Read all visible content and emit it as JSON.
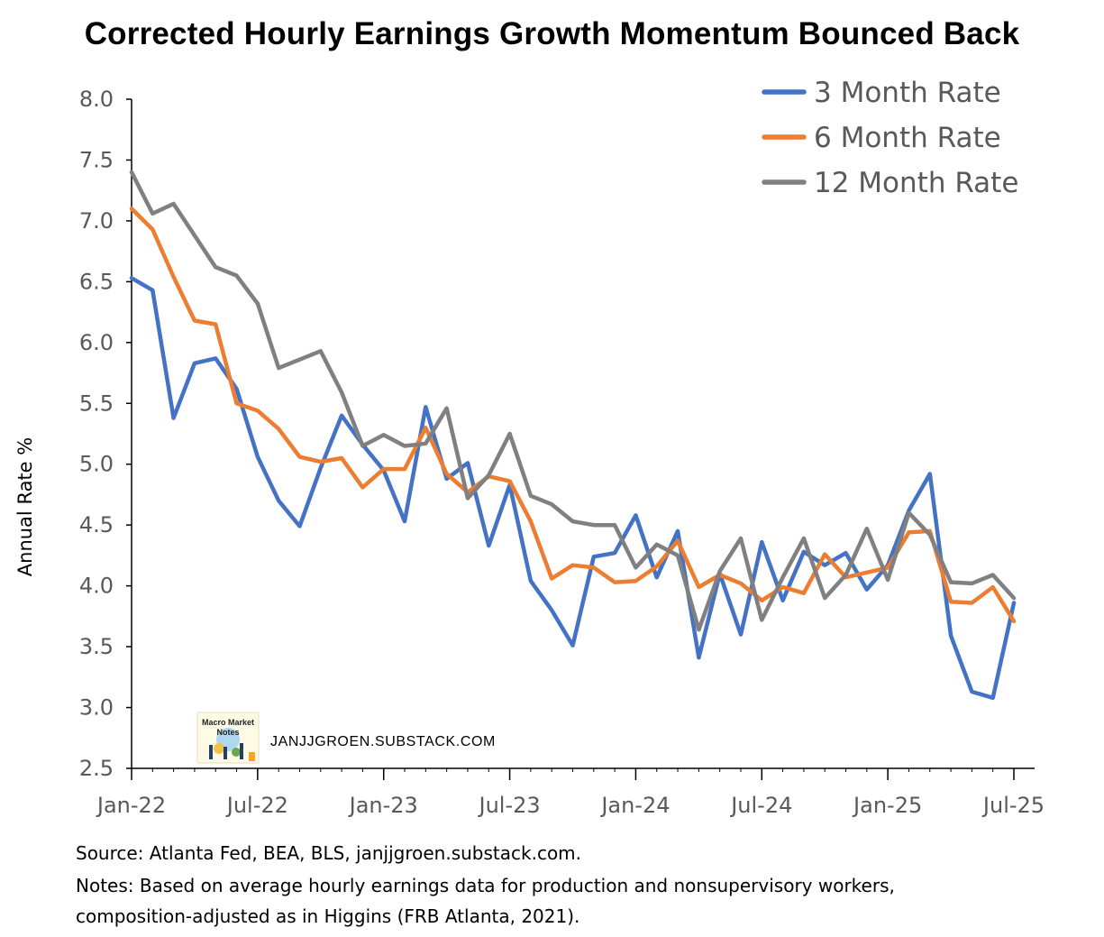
{
  "chart_data": {
    "type": "line",
    "title": "Corrected Hourly Earnings Growth Momentum Bounced Back",
    "xlabel": "",
    "ylabel": "Annual Rate %",
    "ylim": [
      2.5,
      8.0
    ],
    "y_ticks": [
      "2.5",
      "3.0",
      "3.5",
      "4.0",
      "4.5",
      "5.0",
      "5.5",
      "6.0",
      "6.5",
      "7.0",
      "7.5",
      "8.0"
    ],
    "x_tick_labels": [
      "Jan-22",
      "Jul-22",
      "Jan-23",
      "Jul-23",
      "Jan-24",
      "Jul-24",
      "Jan-25",
      "Jul-25"
    ],
    "x": [
      "2022-01",
      "2022-02",
      "2022-03",
      "2022-04",
      "2022-05",
      "2022-06",
      "2022-07",
      "2022-08",
      "2022-09",
      "2022-10",
      "2022-11",
      "2022-12",
      "2023-01",
      "2023-02",
      "2023-03",
      "2023-04",
      "2023-05",
      "2023-06",
      "2023-07",
      "2023-08",
      "2023-09",
      "2023-10",
      "2023-11",
      "2023-12",
      "2024-01",
      "2024-02",
      "2024-03",
      "2024-04",
      "2024-05",
      "2024-06",
      "2024-07",
      "2024-08",
      "2024-09",
      "2024-10",
      "2024-11",
      "2024-12",
      "2025-01",
      "2025-02",
      "2025-03",
      "2025-04",
      "2025-05",
      "2025-06",
      "2025-07"
    ],
    "legend_position": "top-right",
    "series": [
      {
        "name": "3 Month Rate",
        "color": "#4472C4",
        "values": [
          6.53,
          6.43,
          5.38,
          5.83,
          5.87,
          5.62,
          5.06,
          4.7,
          4.49,
          4.97,
          5.4,
          5.16,
          4.95,
          4.53,
          5.47,
          4.88,
          5.01,
          4.33,
          4.83,
          4.04,
          3.8,
          3.51,
          4.24,
          4.27,
          4.58,
          4.07,
          4.45,
          3.41,
          4.1,
          3.6,
          4.36,
          3.88,
          4.28,
          4.17,
          4.27,
          3.97,
          4.17,
          4.62,
          4.92,
          3.59,
          3.13,
          3.08,
          3.86
        ]
      },
      {
        "name": "6 Month Rate",
        "color": "#ED7D31",
        "values": [
          7.1,
          6.93,
          6.54,
          6.18,
          6.15,
          5.5,
          5.44,
          5.29,
          5.06,
          5.02,
          5.05,
          4.81,
          4.96,
          4.96,
          5.3,
          4.92,
          4.77,
          4.9,
          4.86,
          4.53,
          4.06,
          4.17,
          4.15,
          4.03,
          4.04,
          4.16,
          4.37,
          3.99,
          4.09,
          4.02,
          3.88,
          3.99,
          3.94,
          4.26,
          4.07,
          4.11,
          4.15,
          4.44,
          4.45,
          3.87,
          3.86,
          3.99,
          3.71
        ]
      },
      {
        "name": "12 Month Rate",
        "color": "#808080",
        "values": [
          7.4,
          7.06,
          7.14,
          6.88,
          6.62,
          6.55,
          6.32,
          5.79,
          5.86,
          5.93,
          5.59,
          5.15,
          5.24,
          5.15,
          5.17,
          5.46,
          4.72,
          4.91,
          5.25,
          4.74,
          4.67,
          4.53,
          4.5,
          4.5,
          4.15,
          4.34,
          4.25,
          3.64,
          4.12,
          4.39,
          3.72,
          4.07,
          4.39,
          3.9,
          4.09,
          4.47,
          4.05,
          4.6,
          4.42,
          4.03,
          4.02,
          4.09,
          3.9
        ]
      }
    ]
  },
  "watermark": {
    "logo_text": [
      "Macro Market",
      "Notes"
    ],
    "text": "JANJJGROEN.SUBSTACK.COM"
  },
  "footnotes": {
    "source": "Source: Atlanta Fed, BEA, BLS, janjjgroen.substack.com.",
    "notes_line1": "Notes: Based on average hourly earnings data for production and nonsupervisory workers,",
    "notes_line2": "composition-adjusted as in Higgins (FRB Atlanta, 2021)."
  }
}
